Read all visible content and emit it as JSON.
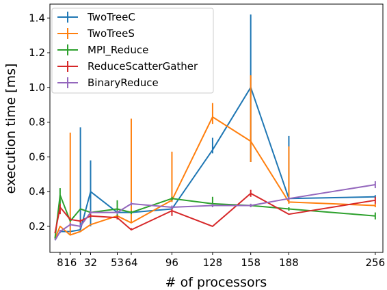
{
  "chart_data": {
    "type": "line",
    "title": "",
    "xlabel": "# of processors",
    "ylabel": "execution time [ms]",
    "xlim": [
      0,
      262
    ],
    "ylim": [
      0.05,
      1.48
    ],
    "xticks": [
      8,
      16,
      24,
      32,
      53,
      64,
      96,
      128,
      158,
      188,
      256
    ],
    "xtick_labels": [
      "8",
      "16",
      "",
      "32",
      "53",
      "64",
      "96",
      "128",
      "158",
      "188",
      "256"
    ],
    "yticks": [
      0.2,
      0.4,
      0.6,
      0.8,
      1.0,
      1.2,
      1.4
    ],
    "ytick_labels": [
      "0.2",
      "0.4",
      "0.6",
      "0.8",
      "1.0",
      "1.2",
      "1.4"
    ],
    "grid": false,
    "legend_position": "top-left",
    "series": [
      {
        "name": "TwoTreeC",
        "color": "#1f77b4",
        "x": [
          4,
          8,
          16,
          24,
          32,
          53,
          64,
          96,
          128,
          158,
          188,
          256
        ],
        "y": [
          0.12,
          0.17,
          0.17,
          0.18,
          0.4,
          0.28,
          0.28,
          0.3,
          0.64,
          1.0,
          0.36,
          0.37
        ],
        "err_low": [
          0.12,
          0.17,
          0.17,
          0.18,
          0.2,
          0.28,
          0.28,
          0.3,
          0.62,
          0.57,
          0.35,
          0.36
        ],
        "err_high": [
          0.12,
          0.17,
          0.17,
          0.77,
          0.58,
          0.28,
          0.28,
          0.3,
          0.71,
          1.42,
          0.72,
          0.38
        ]
      },
      {
        "name": "TwoTreeS",
        "color": "#ff7f0e",
        "x": [
          4,
          8,
          16,
          24,
          32,
          53,
          64,
          96,
          128,
          158,
          188,
          256
        ],
        "y": [
          0.13,
          0.2,
          0.15,
          0.17,
          0.21,
          0.26,
          0.22,
          0.35,
          0.83,
          0.69,
          0.34,
          0.32
        ],
        "err_low": [
          0.13,
          0.2,
          0.15,
          0.17,
          0.21,
          0.26,
          0.22,
          0.34,
          0.79,
          0.57,
          0.33,
          0.31
        ],
        "err_high": [
          0.13,
          0.2,
          0.74,
          0.17,
          0.21,
          0.26,
          0.82,
          0.63,
          0.91,
          1.07,
          0.66,
          0.33
        ]
      },
      {
        "name": "MPI_Reduce",
        "color": "#2ca02c",
        "x": [
          4,
          8,
          16,
          24,
          32,
          53,
          64,
          96,
          128,
          158,
          188,
          256
        ],
        "y": [
          0.13,
          0.38,
          0.23,
          0.3,
          0.28,
          0.3,
          0.28,
          0.36,
          0.33,
          0.32,
          0.3,
          0.26
        ],
        "err_low": [
          0.13,
          0.33,
          0.23,
          0.3,
          0.28,
          0.26,
          0.27,
          0.35,
          0.31,
          0.31,
          0.29,
          0.24
        ],
        "err_high": [
          0.13,
          0.42,
          0.23,
          0.3,
          0.28,
          0.35,
          0.29,
          0.37,
          0.37,
          0.33,
          0.31,
          0.28
        ]
      },
      {
        "name": "ReduceScatterGather",
        "color": "#d62728",
        "x": [
          4,
          8,
          16,
          24,
          32,
          53,
          64,
          96,
          128,
          158,
          188,
          256
        ],
        "y": [
          0.16,
          0.31,
          0.24,
          0.23,
          0.26,
          0.25,
          0.18,
          0.29,
          0.2,
          0.39,
          0.27,
          0.35
        ],
        "err_low": [
          0.16,
          0.27,
          0.24,
          0.22,
          0.25,
          0.24,
          0.18,
          0.26,
          0.2,
          0.37,
          0.27,
          0.33
        ],
        "err_high": [
          0.16,
          0.33,
          0.25,
          0.24,
          0.27,
          0.26,
          0.19,
          0.31,
          0.2,
          0.41,
          0.27,
          0.37
        ]
      },
      {
        "name": "BinaryReduce",
        "color": "#9467bd",
        "x": [
          4,
          8,
          16,
          24,
          32,
          53,
          64,
          96,
          128,
          158,
          188,
          256
        ],
        "y": [
          0.12,
          0.17,
          0.21,
          0.2,
          0.28,
          0.28,
          0.33,
          0.31,
          0.32,
          0.32,
          0.36,
          0.44
        ],
        "err_low": [
          0.12,
          0.16,
          0.2,
          0.19,
          0.27,
          0.27,
          0.32,
          0.3,
          0.31,
          0.31,
          0.35,
          0.42
        ],
        "err_high": [
          0.12,
          0.18,
          0.22,
          0.21,
          0.29,
          0.29,
          0.34,
          0.32,
          0.33,
          0.33,
          0.37,
          0.46
        ]
      }
    ]
  }
}
